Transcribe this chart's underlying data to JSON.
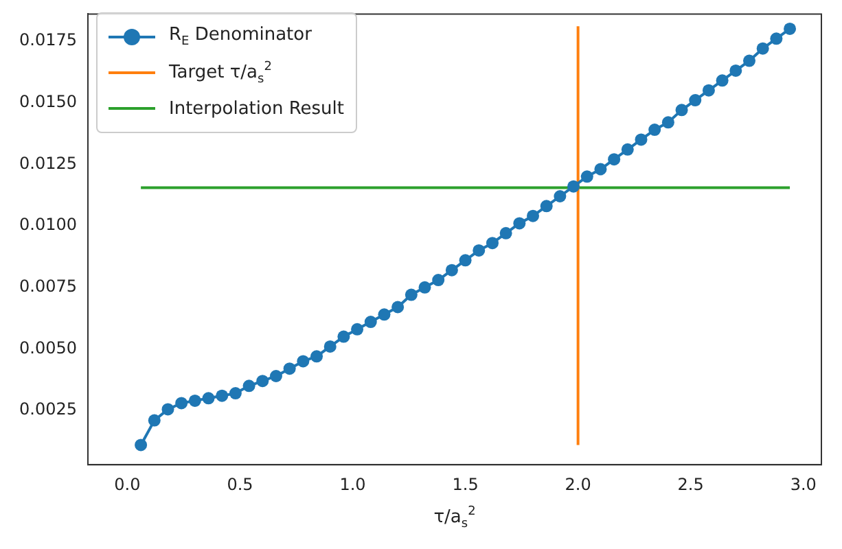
{
  "chart_data": {
    "type": "line",
    "xlabel": "τ/a$_{s}$$^{2}$",
    "legend": "top left",
    "grid": false,
    "xlim": [
      -0.175,
      3.08
    ],
    "ylim": [
      0.0003,
      0.0186
    ],
    "xticks": [
      {
        "value": 0,
        "label": "0.0"
      },
      {
        "value": 0.5,
        "label": "0.5"
      },
      {
        "value": 1,
        "label": "1.0"
      },
      {
        "value": 1.5,
        "label": "1.5"
      },
      {
        "value": 2,
        "label": "2.0"
      },
      {
        "value": 2.5,
        "label": "2.5"
      },
      {
        "value": 3,
        "label": "3.0"
      }
    ],
    "yticks": [
      0.0025,
      {
        "value": 0.005,
        "label": "0.0050"
      },
      0.0075,
      {
        "value": 0.01,
        "label": "0.0100"
      },
      0.0125,
      {
        "value": 0.015,
        "label": "0.0150"
      },
      0.0175
    ],
    "series": [
      {
        "name": "R$_{E}$ Denominator",
        "color": "#1f77b4",
        "marker": "circle",
        "x": [
          0.06,
          0.12,
          0.18,
          0.24,
          0.3,
          0.36,
          0.42,
          0.48,
          0.54,
          0.6,
          0.66,
          0.72,
          0.78,
          0.84,
          0.9,
          0.96,
          1.02,
          1.08,
          1.14,
          1.2,
          1.26,
          1.32,
          1.38,
          1.44,
          1.5,
          1.56,
          1.62,
          1.68,
          1.74,
          1.8,
          1.86,
          1.92,
          1.98,
          2.04,
          2.1,
          2.16,
          2.22,
          2.28,
          2.34,
          2.4,
          2.46,
          2.52,
          2.58,
          2.64,
          2.7,
          2.76,
          2.82,
          2.88,
          2.94
        ],
        "values": [
          0.0011,
          0.0021,
          0.00255,
          0.0028,
          0.0029,
          0.003,
          0.0031,
          0.0032,
          0.0035,
          0.0037,
          0.0039,
          0.0042,
          0.0045,
          0.0047,
          0.0051,
          0.0055,
          0.0058,
          0.0061,
          0.0064,
          0.0067,
          0.0072,
          0.0075,
          0.0078,
          0.0082,
          0.0086,
          0.009,
          0.0093,
          0.0097,
          0.0101,
          0.0104,
          0.0108,
          0.0112,
          0.0116,
          0.012,
          0.0123,
          0.0127,
          0.0131,
          0.0135,
          0.0139,
          0.0142,
          0.0147,
          0.0151,
          0.0155,
          0.0159,
          0.0163,
          0.0167,
          0.0172,
          0.0176,
          0.018
        ]
      },
      {
        "name": "Target τ/a$_{s}$$^{2}$",
        "color": "#ff7f0e",
        "marker": "none",
        "x": [
          2,
          2
        ],
        "values": [
          0.0011,
          0.0181
        ]
      },
      {
        "name": "Interpolation Result",
        "color": "#2ca02c",
        "marker": "none",
        "x": [
          0.06,
          2.94
        ],
        "values": [
          0.01155,
          0.01155
        ]
      }
    ]
  }
}
